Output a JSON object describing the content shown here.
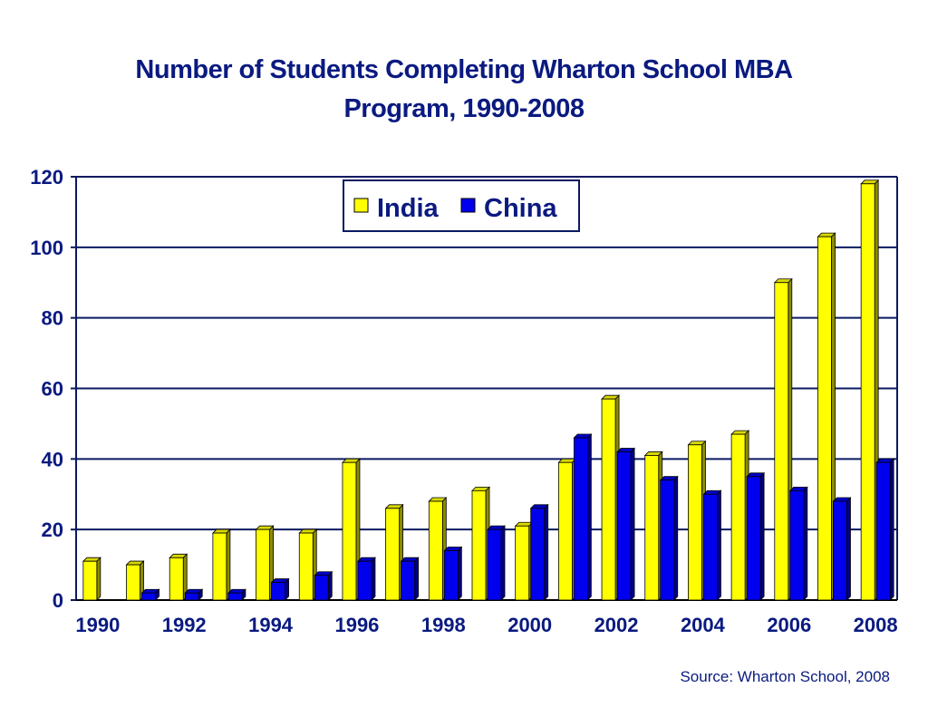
{
  "title": {
    "line1": "Number of Students Completing Wharton School MBA",
    "line2": "Program, 1990-2008"
  },
  "source": "Source: Wharton School, 2008",
  "colors": {
    "india": "#ffff00",
    "china": "#0000ee",
    "text": "#0a1a80",
    "grid": "#0a1a60"
  },
  "chart_data": {
    "type": "bar",
    "title": "Number of Students Completing Wharton School MBA Program, 1990-2008",
    "categories": [
      "1990",
      "1991",
      "1992",
      "1993",
      "1994",
      "1995",
      "1996",
      "1997",
      "1998",
      "1999",
      "2000",
      "2001",
      "2002",
      "2003",
      "2004",
      "2005",
      "2006",
      "2007",
      "2008"
    ],
    "x_tick_labels": [
      "1990",
      "1992",
      "1994",
      "1996",
      "1998",
      "2000",
      "2002",
      "2004",
      "2006",
      "2008"
    ],
    "series": [
      {
        "name": "India",
        "values": [
          11,
          10,
          12,
          19,
          20,
          19,
          39,
          26,
          28,
          31,
          21,
          39,
          57,
          41,
          44,
          47,
          90,
          103,
          118
        ]
      },
      {
        "name": "China",
        "values": [
          0,
          2,
          2,
          2,
          5,
          7,
          11,
          11,
          14,
          20,
          26,
          46,
          42,
          34,
          30,
          35,
          31,
          28,
          39
        ]
      }
    ],
    "ylim": [
      0,
      120
    ],
    "yticks": [
      0,
      20,
      40,
      60,
      80,
      100,
      120
    ],
    "grid": true,
    "legend": "top-center"
  }
}
